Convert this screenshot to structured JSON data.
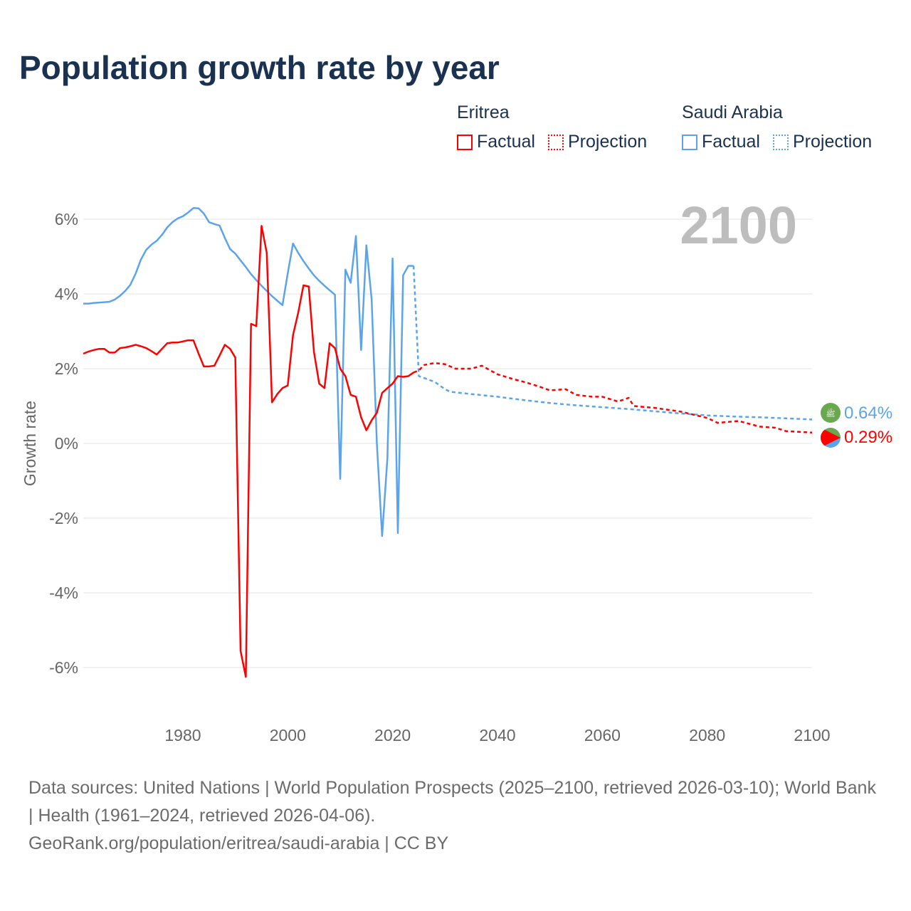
{
  "title": "Population growth rate by year",
  "legend": {
    "groups": [
      {
        "name": "Eritrea",
        "factual": "Factual",
        "projection": "Projection",
        "color": "#ff0000"
      },
      {
        "name": "Saudi Arabia",
        "factual": "Factual",
        "projection": "Projection",
        "color": "#5ba4ea"
      }
    ]
  },
  "year_label": "2100",
  "end_labels": {
    "saudi": "0.64%",
    "eritrea": "0.29%"
  },
  "source": {
    "line1": "Data sources: United Nations | World Population Prospects (2025–2100, retrieved 2026-03-10); World Bank | Health (1961–2024, retrieved 2026-04-06).",
    "line2": "GeoRank.org/population/eritrea/saudi-arabia | CC BY"
  },
  "chart_data": {
    "type": "line",
    "title": "Population growth rate by year",
    "xlabel": "",
    "ylabel": "Growth rate",
    "xlim": [
      1961,
      2100
    ],
    "ylim": [
      -6.8,
      6.8
    ],
    "xticks": [
      1980,
      2000,
      2020,
      2040,
      2060,
      2080,
      2100
    ],
    "xtick_labels": [
      "1980",
      "2000",
      "2020",
      "2040",
      "2060",
      "2080",
      "2100"
    ],
    "yticks": [
      6,
      4,
      2,
      0,
      -2,
      -4,
      -6
    ],
    "ytick_labels": [
      "6%",
      "4%",
      "2%",
      "0%",
      "-2%",
      "-4%",
      "-6%"
    ],
    "series": [
      {
        "name": "Saudi Arabia Factual",
        "color": "#5ba4ea",
        "dashed": false,
        "x": [
          1961,
          1962,
          1963,
          1964,
          1965,
          1966,
          1967,
          1968,
          1969,
          1970,
          1971,
          1972,
          1973,
          1974,
          1975,
          1976,
          1977,
          1978,
          1979,
          1980,
          1981,
          1982,
          1983,
          1984,
          1985,
          1986,
          1987,
          1988,
          1989,
          1990,
          1991,
          1992,
          1993,
          1994,
          1995,
          1996,
          1997,
          1998,
          1999,
          2000,
          2001,
          2002,
          2003,
          2004,
          2005,
          2006,
          2007,
          2008,
          2009,
          2010,
          2011,
          2012,
          2013,
          2014,
          2015,
          2016,
          2017,
          2018,
          2019,
          2020,
          2021,
          2022,
          2023,
          2024
        ],
        "y": [
          3.74,
          3.74,
          3.76,
          3.77,
          3.78,
          3.79,
          3.85,
          3.95,
          4.08,
          4.25,
          4.55,
          4.92,
          5.18,
          5.32,
          5.42,
          5.58,
          5.78,
          5.92,
          6.02,
          6.08,
          6.18,
          6.3,
          6.29,
          6.15,
          5.92,
          5.87,
          5.83,
          5.5,
          5.2,
          5.08,
          4.9,
          4.72,
          4.53,
          4.37,
          4.22,
          4.08,
          3.94,
          3.82,
          3.7,
          4.55,
          5.35,
          5.1,
          4.88,
          4.68,
          4.5,
          4.35,
          4.22,
          4.1,
          3.98,
          -0.95,
          4.65,
          4.3,
          5.55,
          2.5,
          5.3,
          3.85,
          0.0,
          -2.48,
          -0.4,
          4.95,
          -2.4,
          4.5,
          4.75,
          4.75
        ]
      },
      {
        "name": "Saudi Arabia Projection",
        "color": "#5ba4ea",
        "dashed": true,
        "x": [
          2024,
          2025,
          2026,
          2027,
          2028,
          2029,
          2030,
          2031,
          2035,
          2040,
          2045,
          2050,
          2055,
          2060,
          2065,
          2070,
          2075,
          2080,
          2085,
          2090,
          2095,
          2100
        ],
        "y": [
          4.75,
          1.8,
          1.75,
          1.7,
          1.65,
          1.55,
          1.45,
          1.38,
          1.32,
          1.25,
          1.16,
          1.08,
          1.02,
          0.97,
          0.92,
          0.86,
          0.8,
          0.75,
          0.72,
          0.7,
          0.67,
          0.64
        ]
      },
      {
        "name": "Eritrea Factual",
        "color": "#ff0000",
        "dashed": false,
        "x": [
          1961,
          1962,
          1963,
          1964,
          1965,
          1966,
          1967,
          1968,
          1969,
          1970,
          1971,
          1972,
          1973,
          1974,
          1975,
          1976,
          1977,
          1978,
          1979,
          1980,
          1981,
          1982,
          1983,
          1984,
          1985,
          1986,
          1987,
          1988,
          1989,
          1990,
          1991,
          1992,
          1993,
          1994,
          1995,
          1996,
          1997,
          1998,
          1999,
          2000,
          2001,
          2002,
          2003,
          2004,
          2005,
          2006,
          2007,
          2008,
          2009,
          2010,
          2011,
          2012,
          2013,
          2014,
          2015,
          2016,
          2017,
          2018,
          2019,
          2020,
          2021,
          2022,
          2023,
          2024
        ],
        "y": [
          2.4,
          2.46,
          2.5,
          2.53,
          2.53,
          2.43,
          2.43,
          2.55,
          2.57,
          2.6,
          2.64,
          2.6,
          2.55,
          2.47,
          2.38,
          2.53,
          2.68,
          2.7,
          2.7,
          2.73,
          2.76,
          2.76,
          2.4,
          2.06,
          2.06,
          2.08,
          2.35,
          2.64,
          2.53,
          2.3,
          -5.55,
          -6.25,
          3.2,
          3.14,
          5.82,
          5.1,
          1.1,
          1.32,
          1.48,
          1.55,
          2.9,
          3.5,
          4.23,
          4.2,
          2.45,
          1.6,
          1.48,
          2.68,
          2.55,
          2.0,
          1.8,
          1.3,
          1.25,
          0.7,
          0.35,
          0.62,
          0.82,
          1.35,
          1.48,
          1.6,
          1.8,
          1.78,
          1.8,
          1.9
        ]
      },
      {
        "name": "Eritrea Projection",
        "color": "#ff0000",
        "dashed": true,
        "x": [
          2024,
          2025,
          2026,
          2028,
          2030,
          2032,
          2035,
          2037,
          2040,
          2043,
          2045,
          2048,
          2050,
          2053,
          2055,
          2058,
          2060,
          2063,
          2065,
          2066,
          2070,
          2075,
          2080,
          2082,
          2086,
          2090,
          2093,
          2095,
          2100
        ],
        "y": [
          1.9,
          1.95,
          2.1,
          2.15,
          2.12,
          2.0,
          2.0,
          2.08,
          1.85,
          1.72,
          1.65,
          1.52,
          1.42,
          1.45,
          1.3,
          1.25,
          1.25,
          1.12,
          1.22,
          1.0,
          0.95,
          0.85,
          0.68,
          0.55,
          0.6,
          0.45,
          0.42,
          0.33,
          0.29
        ]
      }
    ]
  }
}
